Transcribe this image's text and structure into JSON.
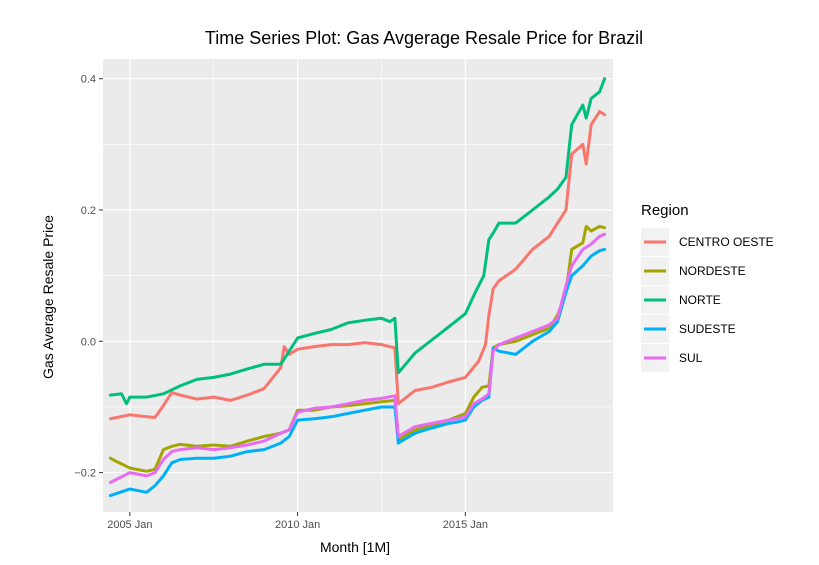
{
  "chart_data": {
    "type": "line",
    "title": "Time Series Plot: Gas Avgerage Resale Price for Brazil",
    "xlabel": "Month [1M]",
    "ylabel": "Gas Average Resale Price",
    "xlim": [
      2004.2,
      2019.4
    ],
    "ylim": [
      -0.26,
      0.43
    ],
    "x_ticks": [
      {
        "value": 2005.0,
        "label": "2005 Jan"
      },
      {
        "value": 2010.0,
        "label": "2010 Jan"
      },
      {
        "value": 2015.0,
        "label": "2015 Jan"
      }
    ],
    "y_ticks": [
      {
        "value": -0.2,
        "label": "−0.2"
      },
      {
        "value": 0.0,
        "label": "0.0"
      },
      {
        "value": 0.2,
        "label": "0.2"
      },
      {
        "value": 0.4,
        "label": "0.4"
      }
    ],
    "grid": true,
    "legend_title": "Region",
    "legend_position": "right",
    "series": [
      {
        "name": "CENTRO OESTE",
        "color": "#F8766D",
        "x": [
          2004.42,
          2005.0,
          2005.5,
          2005.75,
          2006.0,
          2006.25,
          2006.5,
          2007.0,
          2007.5,
          2008.0,
          2008.5,
          2009.0,
          2009.5,
          2009.6,
          2009.75,
          2010.0,
          2010.5,
          2011.0,
          2011.5,
          2012.0,
          2012.5,
          2012.9,
          2013.0,
          2013.5,
          2014.0,
          2014.5,
          2015.0,
          2015.4,
          2015.6,
          2015.7,
          2015.83,
          2016.0,
          2016.5,
          2017.0,
          2017.5,
          2017.75,
          2018.0,
          2018.17,
          2018.5,
          2018.6,
          2018.75,
          2019.0,
          2019.15
        ],
        "values": [
          -0.118,
          -0.112,
          -0.115,
          -0.116,
          -0.098,
          -0.078,
          -0.082,
          -0.088,
          -0.085,
          -0.09,
          -0.082,
          -0.072,
          -0.04,
          -0.008,
          -0.02,
          -0.012,
          -0.008,
          -0.005,
          -0.005,
          -0.002,
          -0.005,
          -0.01,
          -0.095,
          -0.075,
          -0.07,
          -0.062,
          -0.055,
          -0.03,
          -0.005,
          0.04,
          0.08,
          0.092,
          0.11,
          0.14,
          0.16,
          0.18,
          0.2,
          0.285,
          0.3,
          0.27,
          0.33,
          0.35,
          0.345
        ]
      },
      {
        "name": "NORDESTE",
        "color": "#A3A500",
        "x": [
          2004.42,
          2004.6,
          2005.0,
          2005.5,
          2005.75,
          2006.0,
          2006.25,
          2006.5,
          2007.0,
          2007.5,
          2008.0,
          2008.5,
          2009.0,
          2009.5,
          2009.75,
          2010.0,
          2010.5,
          2011.0,
          2011.5,
          2012.0,
          2012.5,
          2012.9,
          2013.0,
          2013.5,
          2014.0,
          2014.5,
          2014.75,
          2015.0,
          2015.25,
          2015.5,
          2015.7,
          2015.83,
          2016.0,
          2016.5,
          2017.0,
          2017.5,
          2017.75,
          2018.0,
          2018.17,
          2018.5,
          2018.6,
          2018.75,
          2019.0,
          2019.15
        ],
        "values": [
          -0.178,
          -0.183,
          -0.193,
          -0.198,
          -0.195,
          -0.165,
          -0.16,
          -0.157,
          -0.16,
          -0.158,
          -0.16,
          -0.152,
          -0.145,
          -0.14,
          -0.135,
          -0.105,
          -0.105,
          -0.1,
          -0.098,
          -0.095,
          -0.092,
          -0.09,
          -0.15,
          -0.135,
          -0.128,
          -0.12,
          -0.115,
          -0.11,
          -0.085,
          -0.07,
          -0.068,
          -0.01,
          -0.005,
          0.0,
          0.01,
          0.02,
          0.04,
          0.075,
          0.14,
          0.15,
          0.175,
          0.168,
          0.175,
          0.173
        ]
      },
      {
        "name": "NORTE",
        "color": "#00BF7D",
        "x": [
          2004.42,
          2004.75,
          2004.9,
          2005.0,
          2005.5,
          2006.0,
          2006.5,
          2007.0,
          2007.5,
          2008.0,
          2008.5,
          2009.0,
          2009.5,
          2009.75,
          2010.0,
          2010.5,
          2011.0,
          2011.5,
          2012.0,
          2012.5,
          2012.75,
          2012.9,
          2013.0,
          2013.5,
          2014.0,
          2014.5,
          2015.0,
          2015.3,
          2015.55,
          2015.7,
          2015.83,
          2016.0,
          2016.5,
          2017.0,
          2017.5,
          2017.75,
          2018.0,
          2018.17,
          2018.5,
          2018.6,
          2018.75,
          2019.0,
          2019.15
        ],
        "values": [
          -0.082,
          -0.08,
          -0.095,
          -0.085,
          -0.085,
          -0.08,
          -0.068,
          -0.058,
          -0.055,
          -0.05,
          -0.042,
          -0.035,
          -0.035,
          -0.015,
          0.005,
          0.012,
          0.018,
          0.028,
          0.032,
          0.035,
          0.03,
          0.035,
          -0.048,
          -0.018,
          0.002,
          0.022,
          0.042,
          0.075,
          0.1,
          0.155,
          0.165,
          0.18,
          0.18,
          0.2,
          0.22,
          0.232,
          0.25,
          0.33,
          0.36,
          0.34,
          0.37,
          0.38,
          0.4
        ]
      },
      {
        "name": "SUDESTE",
        "color": "#00B0F6",
        "x": [
          2004.42,
          2005.0,
          2005.5,
          2005.75,
          2006.0,
          2006.25,
          2006.5,
          2007.0,
          2007.5,
          2008.0,
          2008.5,
          2009.0,
          2009.5,
          2009.75,
          2010.0,
          2010.5,
          2011.0,
          2011.5,
          2012.0,
          2012.5,
          2012.9,
          2013.0,
          2013.5,
          2014.0,
          2014.5,
          2014.75,
          2015.0,
          2015.25,
          2015.5,
          2015.7,
          2015.83,
          2016.0,
          2016.5,
          2017.0,
          2017.5,
          2017.75,
          2018.0,
          2018.17,
          2018.5,
          2018.75,
          2019.0,
          2019.15
        ],
        "values": [
          -0.235,
          -0.225,
          -0.23,
          -0.22,
          -0.205,
          -0.185,
          -0.18,
          -0.178,
          -0.178,
          -0.175,
          -0.168,
          -0.165,
          -0.155,
          -0.145,
          -0.12,
          -0.118,
          -0.115,
          -0.11,
          -0.105,
          -0.1,
          -0.1,
          -0.155,
          -0.14,
          -0.132,
          -0.125,
          -0.123,
          -0.12,
          -0.1,
          -0.09,
          -0.085,
          -0.01,
          -0.015,
          -0.02,
          0.0,
          0.015,
          0.03,
          0.075,
          0.1,
          0.115,
          0.13,
          0.138,
          0.14
        ]
      },
      {
        "name": "SUL",
        "color": "#E76BF3",
        "x": [
          2004.42,
          2005.0,
          2005.5,
          2005.75,
          2006.0,
          2006.25,
          2006.5,
          2007.0,
          2007.5,
          2008.0,
          2008.5,
          2009.0,
          2009.5,
          2009.75,
          2010.0,
          2010.5,
          2011.0,
          2011.5,
          2012.0,
          2012.5,
          2012.9,
          2013.0,
          2013.5,
          2014.0,
          2014.5,
          2014.75,
          2015.0,
          2015.25,
          2015.5,
          2015.7,
          2015.83,
          2016.0,
          2016.5,
          2017.0,
          2017.5,
          2017.75,
          2018.0,
          2018.17,
          2018.5,
          2018.75,
          2019.0,
          2019.15
        ],
        "values": [
          -0.215,
          -0.2,
          -0.205,
          -0.2,
          -0.18,
          -0.168,
          -0.165,
          -0.162,
          -0.165,
          -0.162,
          -0.158,
          -0.152,
          -0.14,
          -0.135,
          -0.108,
          -0.102,
          -0.1,
          -0.095,
          -0.09,
          -0.087,
          -0.083,
          -0.145,
          -0.13,
          -0.125,
          -0.12,
          -0.118,
          -0.115,
          -0.095,
          -0.088,
          -0.08,
          -0.015,
          -0.005,
          0.005,
          0.015,
          0.025,
          0.035,
          0.085,
          0.115,
          0.14,
          0.148,
          0.16,
          0.163
        ]
      }
    ]
  }
}
